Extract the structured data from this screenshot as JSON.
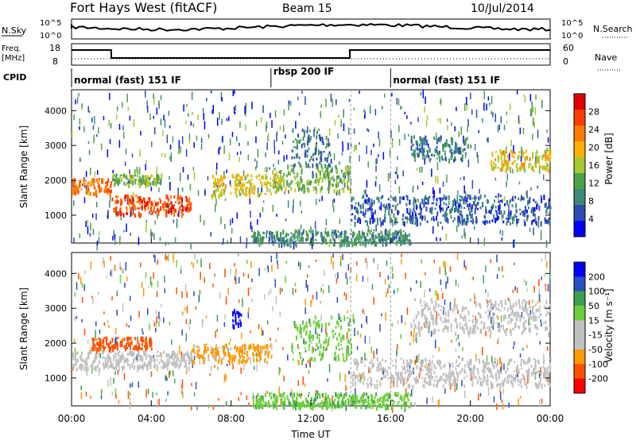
{
  "header": {
    "station": "Fort Hays West (fitACF)",
    "beam": "Beam 15",
    "date": "10/Jul/2014"
  },
  "top_panels": {
    "nsky_label": "N.Sky",
    "nsearch_label": "N.Search",
    "noise_ticks_left": [
      "10^5",
      "10^0"
    ],
    "noise_ticks_right": [
      "10^5",
      "10^0"
    ],
    "freq_label": "Freq.",
    "freq_unit": "[MHz]",
    "freq_ticks": [
      "18",
      "8"
    ],
    "nave_ticks": [
      "60",
      "0"
    ],
    "nave_label": "Nave",
    "cpid_label": "CPID",
    "cpid_segments": [
      {
        "label": "normal (fast) 151 IF",
        "start_h": 0,
        "end_h": 10
      },
      {
        "label": "rbsp 200 IF",
        "start_h": 10,
        "end_h": 16
      },
      {
        "label": "normal (fast) 151 IF",
        "start_h": 16,
        "end_h": 24
      }
    ]
  },
  "colors": {
    "power_scale": [
      "#0000ff",
      "#2e4bb4",
      "#3d8a7a",
      "#4fa04a",
      "#a3c831",
      "#ffb000",
      "#ff7a00",
      "#ff3d00",
      "#e00000"
    ],
    "velocity_scale": [
      "#ff0000",
      "#ff5000",
      "#ff9a00",
      "#c0c0c0",
      "#c0c0c0",
      "#6ccf3a",
      "#3ca050",
      "#2850c0",
      "#0000ff"
    ]
  },
  "chart_data": [
    {
      "type": "heatmap",
      "quantity": "power",
      "ylabel": "Slant Range [km]",
      "yticks": [
        1000,
        2000,
        3000,
        4000
      ],
      "ylim": [
        200,
        4600
      ],
      "xlim": [
        0,
        24
      ],
      "colorbar_label": "Power [dB]",
      "colorbar_ticks": [
        4,
        8,
        12,
        16,
        20,
        24,
        28
      ],
      "colorbar_range": [
        0,
        32
      ],
      "features": [
        {
          "t0": 0.0,
          "t1": 2.0,
          "r0": 1650,
          "r1": 2100,
          "val": 24
        },
        {
          "t0": 2.0,
          "t1": 6.0,
          "r0": 1050,
          "r1": 1600,
          "val": 26
        },
        {
          "t0": 2.0,
          "t1": 4.5,
          "r0": 1900,
          "r1": 2200,
          "val": 14
        },
        {
          "t0": 7.0,
          "t1": 10.5,
          "r0": 1600,
          "r1": 2200,
          "val": 18
        },
        {
          "t0": 10.0,
          "t1": 14.0,
          "r0": 1700,
          "r1": 2500,
          "val": 14
        },
        {
          "t0": 11.0,
          "t1": 13.0,
          "r0": 2400,
          "r1": 3500,
          "val": 8
        },
        {
          "t0": 14.0,
          "t1": 24.0,
          "r0": 800,
          "r1": 1600,
          "val": 6
        },
        {
          "t0": 17.0,
          "t1": 20.0,
          "r0": 2600,
          "r1": 3300,
          "val": 8
        },
        {
          "t0": 21.0,
          "t1": 24.0,
          "r0": 2300,
          "r1": 2900,
          "val": 18
        },
        {
          "t0": 9.0,
          "t1": 17.0,
          "r0": 200,
          "r1": 600,
          "val": 10
        }
      ]
    },
    {
      "type": "heatmap",
      "quantity": "velocity",
      "ylabel": "Slant Range [km]",
      "yticks": [
        1000,
        2000,
        3000,
        4000
      ],
      "ylim": [
        200,
        4600
      ],
      "xlim": [
        0,
        24
      ],
      "colorbar_label": "Velocity [m s⁻¹]",
      "colorbar_ticks": [
        -200,
        -100,
        -50,
        -15,
        15,
        50,
        100,
        200
      ],
      "xticks": [
        "00:00",
        "04:00",
        "08:00",
        "12:00",
        "16:00",
        "20:00",
        "00:00"
      ],
      "xlabel": "Time UT",
      "features": [
        {
          "t0": 1.0,
          "t1": 4.0,
          "r0": 1850,
          "r1": 2200,
          "val": -180
        },
        {
          "t0": 0.0,
          "t1": 6.0,
          "r0": 1300,
          "r1": 1800,
          "val": 0
        },
        {
          "t0": 6.0,
          "t1": 10.0,
          "r0": 1500,
          "r1": 2000,
          "val": -60
        },
        {
          "t0": 8.0,
          "t1": 8.5,
          "r0": 2500,
          "r1": 3000,
          "val": 220
        },
        {
          "t0": 11.0,
          "t1": 14.0,
          "r0": 1500,
          "r1": 2800,
          "val": 40
        },
        {
          "t0": 14.0,
          "t1": 24.0,
          "r0": 800,
          "r1": 1600,
          "val": 0
        },
        {
          "t0": 17.0,
          "t1": 24.0,
          "r0": 2300,
          "r1": 3300,
          "val": 0
        },
        {
          "t0": 9.0,
          "t1": 17.0,
          "r0": 200,
          "r1": 600,
          "val": 40
        }
      ]
    }
  ]
}
